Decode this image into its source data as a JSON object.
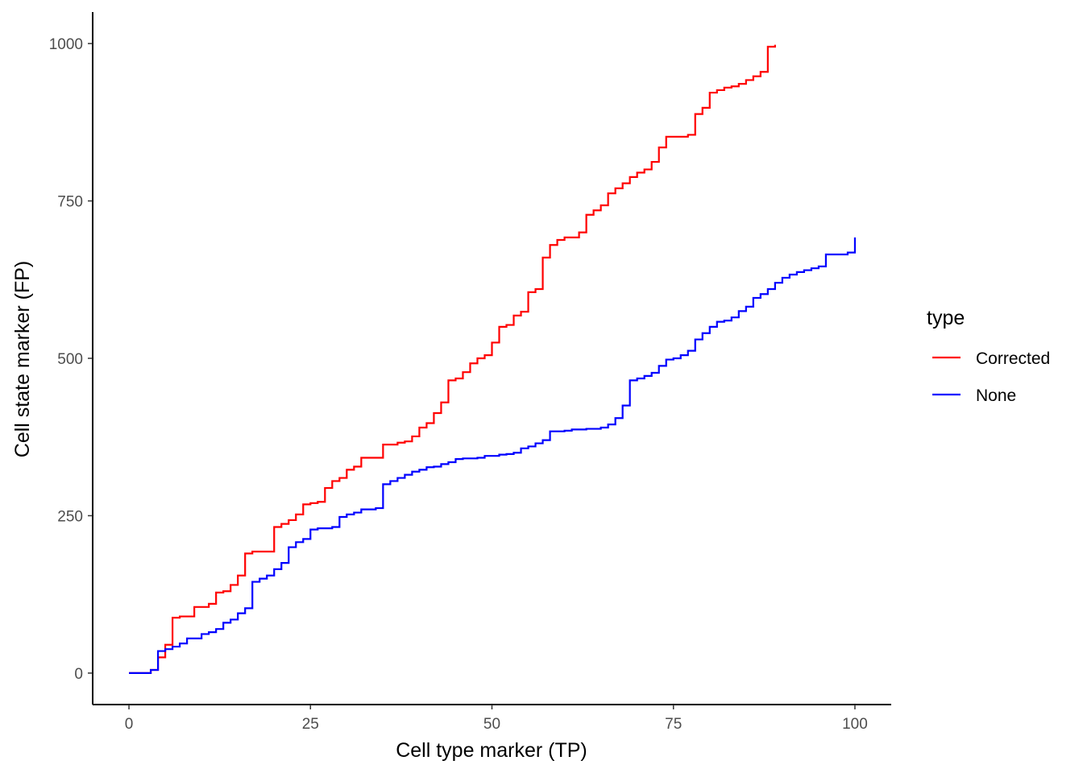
{
  "chart_data": {
    "type": "line",
    "step": true,
    "xlabel": "Cell type marker (TP)",
    "ylabel": "Cell state marker (FP)",
    "xlim": [
      -5,
      105
    ],
    "ylim": [
      -50,
      1050
    ],
    "x_ticks": [
      0,
      25,
      50,
      75,
      100
    ],
    "x_tick_labels": [
      "0",
      "25",
      "50",
      "75",
      "100"
    ],
    "y_ticks": [
      0,
      250,
      500,
      750,
      1000
    ],
    "y_tick_labels": [
      "0",
      "250",
      "500",
      "750",
      "1000"
    ],
    "grid": false,
    "legend": {
      "title": "type",
      "position": "right"
    },
    "series": [
      {
        "name": "Corrected",
        "color": "#ff0000",
        "x": [
          0,
          3,
          4,
          5,
          6,
          7,
          9,
          11,
          12,
          13,
          14,
          15,
          16,
          17,
          20,
          21,
          22,
          23,
          24,
          25,
          26,
          27,
          28,
          29,
          30,
          31,
          32,
          35,
          37,
          38,
          39,
          40,
          41,
          42,
          43,
          44,
          45,
          46,
          47,
          48,
          49,
          50,
          51,
          52,
          53,
          54,
          55,
          56,
          57,
          58,
          59,
          60,
          62,
          63,
          64,
          65,
          66,
          67,
          68,
          69,
          70,
          71,
          72,
          73,
          74,
          77,
          78,
          79,
          80,
          81,
          82,
          83,
          84,
          85,
          86,
          87,
          88,
          89
        ],
        "y": [
          0,
          5,
          25,
          45,
          88,
          90,
          105,
          110,
          128,
          130,
          140,
          155,
          190,
          193,
          232,
          237,
          243,
          252,
          268,
          270,
          272,
          294,
          305,
          310,
          323,
          328,
          342,
          363,
          366,
          368,
          376,
          390,
          397,
          413,
          430,
          465,
          468,
          478,
          492,
          500,
          505,
          525,
          550,
          553,
          568,
          574,
          605,
          610,
          660,
          680,
          688,
          692,
          700,
          728,
          735,
          743,
          762,
          770,
          778,
          788,
          795,
          800,
          812,
          835,
          852,
          855,
          888,
          898,
          922,
          926,
          930,
          932,
          936,
          942,
          948,
          955,
          995,
          998
        ]
      },
      {
        "name": "None",
        "color": "#0000ff",
        "x": [
          0,
          3,
          4,
          5,
          6,
          7,
          8,
          10,
          11,
          12,
          13,
          14,
          15,
          16,
          17,
          18,
          19,
          20,
          21,
          22,
          23,
          24,
          25,
          26,
          28,
          29,
          30,
          31,
          32,
          34,
          35,
          36,
          37,
          38,
          39,
          40,
          41,
          42,
          43,
          44,
          45,
          46,
          48,
          49,
          51,
          52,
          53,
          54,
          55,
          56,
          57,
          58,
          59,
          60,
          61,
          63,
          65,
          66,
          67,
          68,
          69,
          70,
          71,
          72,
          73,
          74,
          75,
          76,
          77,
          78,
          79,
          80,
          81,
          82,
          83,
          84,
          85,
          86,
          87,
          88,
          89,
          90,
          91,
          92,
          93,
          94,
          95,
          96,
          99,
          100
        ],
        "y": [
          0,
          5,
          35,
          38,
          42,
          47,
          55,
          62,
          65,
          70,
          80,
          85,
          95,
          103,
          145,
          150,
          155,
          165,
          175,
          200,
          208,
          213,
          228,
          230,
          232,
          248,
          252,
          255,
          260,
          262,
          300,
          305,
          310,
          315,
          320,
          323,
          327,
          328,
          332,
          335,
          340,
          341,
          342,
          345,
          347,
          348,
          350,
          357,
          360,
          365,
          370,
          384,
          384,
          385,
          387,
          388,
          390,
          395,
          405,
          425,
          465,
          468,
          472,
          477,
          488,
          498,
          500,
          505,
          512,
          530,
          540,
          550,
          558,
          560,
          565,
          575,
          582,
          596,
          602,
          610,
          620,
          628,
          633,
          637,
          640,
          643,
          646,
          665,
          668,
          692
        ]
      }
    ]
  }
}
